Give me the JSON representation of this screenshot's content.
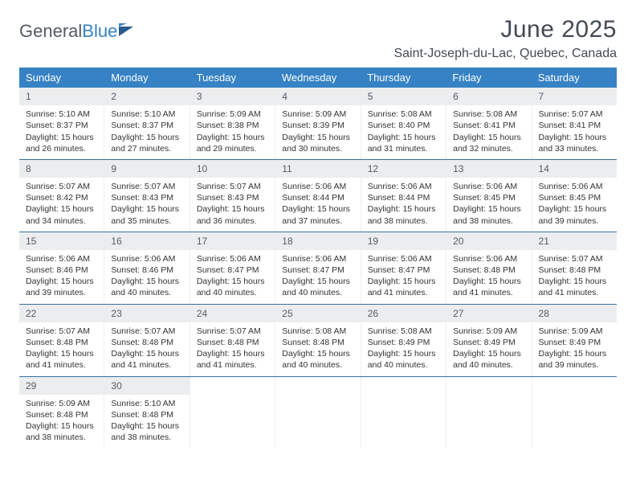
{
  "brand": {
    "part1": "General",
    "part2": "Blue"
  },
  "title": "June 2025",
  "location": "Saint-Joseph-du-Lac, Quebec, Canada",
  "dayNames": [
    "Sunday",
    "Monday",
    "Tuesday",
    "Wednesday",
    "Thursday",
    "Friday",
    "Saturday"
  ],
  "colors": {
    "headerBar": "#3682c4",
    "weekDivider": "#3a6fa3",
    "dayNumBg": "#ecedef",
    "text": "#333333",
    "titleText": "#444a52"
  },
  "weeks": [
    [
      {
        "n": "1",
        "sr": "Sunrise: 5:10 AM",
        "ss": "Sunset: 8:37 PM",
        "d1": "Daylight: 15 hours",
        "d2": "and 26 minutes."
      },
      {
        "n": "2",
        "sr": "Sunrise: 5:10 AM",
        "ss": "Sunset: 8:37 PM",
        "d1": "Daylight: 15 hours",
        "d2": "and 27 minutes."
      },
      {
        "n": "3",
        "sr": "Sunrise: 5:09 AM",
        "ss": "Sunset: 8:38 PM",
        "d1": "Daylight: 15 hours",
        "d2": "and 29 minutes."
      },
      {
        "n": "4",
        "sr": "Sunrise: 5:09 AM",
        "ss": "Sunset: 8:39 PM",
        "d1": "Daylight: 15 hours",
        "d2": "and 30 minutes."
      },
      {
        "n": "5",
        "sr": "Sunrise: 5:08 AM",
        "ss": "Sunset: 8:40 PM",
        "d1": "Daylight: 15 hours",
        "d2": "and 31 minutes."
      },
      {
        "n": "6",
        "sr": "Sunrise: 5:08 AM",
        "ss": "Sunset: 8:41 PM",
        "d1": "Daylight: 15 hours",
        "d2": "and 32 minutes."
      },
      {
        "n": "7",
        "sr": "Sunrise: 5:07 AM",
        "ss": "Sunset: 8:41 PM",
        "d1": "Daylight: 15 hours",
        "d2": "and 33 minutes."
      }
    ],
    [
      {
        "n": "8",
        "sr": "Sunrise: 5:07 AM",
        "ss": "Sunset: 8:42 PM",
        "d1": "Daylight: 15 hours",
        "d2": "and 34 minutes."
      },
      {
        "n": "9",
        "sr": "Sunrise: 5:07 AM",
        "ss": "Sunset: 8:43 PM",
        "d1": "Daylight: 15 hours",
        "d2": "and 35 minutes."
      },
      {
        "n": "10",
        "sr": "Sunrise: 5:07 AM",
        "ss": "Sunset: 8:43 PM",
        "d1": "Daylight: 15 hours",
        "d2": "and 36 minutes."
      },
      {
        "n": "11",
        "sr": "Sunrise: 5:06 AM",
        "ss": "Sunset: 8:44 PM",
        "d1": "Daylight: 15 hours",
        "d2": "and 37 minutes."
      },
      {
        "n": "12",
        "sr": "Sunrise: 5:06 AM",
        "ss": "Sunset: 8:44 PM",
        "d1": "Daylight: 15 hours",
        "d2": "and 38 minutes."
      },
      {
        "n": "13",
        "sr": "Sunrise: 5:06 AM",
        "ss": "Sunset: 8:45 PM",
        "d1": "Daylight: 15 hours",
        "d2": "and 38 minutes."
      },
      {
        "n": "14",
        "sr": "Sunrise: 5:06 AM",
        "ss": "Sunset: 8:45 PM",
        "d1": "Daylight: 15 hours",
        "d2": "and 39 minutes."
      }
    ],
    [
      {
        "n": "15",
        "sr": "Sunrise: 5:06 AM",
        "ss": "Sunset: 8:46 PM",
        "d1": "Daylight: 15 hours",
        "d2": "and 39 minutes."
      },
      {
        "n": "16",
        "sr": "Sunrise: 5:06 AM",
        "ss": "Sunset: 8:46 PM",
        "d1": "Daylight: 15 hours",
        "d2": "and 40 minutes."
      },
      {
        "n": "17",
        "sr": "Sunrise: 5:06 AM",
        "ss": "Sunset: 8:47 PM",
        "d1": "Daylight: 15 hours",
        "d2": "and 40 minutes."
      },
      {
        "n": "18",
        "sr": "Sunrise: 5:06 AM",
        "ss": "Sunset: 8:47 PM",
        "d1": "Daylight: 15 hours",
        "d2": "and 40 minutes."
      },
      {
        "n": "19",
        "sr": "Sunrise: 5:06 AM",
        "ss": "Sunset: 8:47 PM",
        "d1": "Daylight: 15 hours",
        "d2": "and 41 minutes."
      },
      {
        "n": "20",
        "sr": "Sunrise: 5:06 AM",
        "ss": "Sunset: 8:48 PM",
        "d1": "Daylight: 15 hours",
        "d2": "and 41 minutes."
      },
      {
        "n": "21",
        "sr": "Sunrise: 5:07 AM",
        "ss": "Sunset: 8:48 PM",
        "d1": "Daylight: 15 hours",
        "d2": "and 41 minutes."
      }
    ],
    [
      {
        "n": "22",
        "sr": "Sunrise: 5:07 AM",
        "ss": "Sunset: 8:48 PM",
        "d1": "Daylight: 15 hours",
        "d2": "and 41 minutes."
      },
      {
        "n": "23",
        "sr": "Sunrise: 5:07 AM",
        "ss": "Sunset: 8:48 PM",
        "d1": "Daylight: 15 hours",
        "d2": "and 41 minutes."
      },
      {
        "n": "24",
        "sr": "Sunrise: 5:07 AM",
        "ss": "Sunset: 8:48 PM",
        "d1": "Daylight: 15 hours",
        "d2": "and 41 minutes."
      },
      {
        "n": "25",
        "sr": "Sunrise: 5:08 AM",
        "ss": "Sunset: 8:48 PM",
        "d1": "Daylight: 15 hours",
        "d2": "and 40 minutes."
      },
      {
        "n": "26",
        "sr": "Sunrise: 5:08 AM",
        "ss": "Sunset: 8:49 PM",
        "d1": "Daylight: 15 hours",
        "d2": "and 40 minutes."
      },
      {
        "n": "27",
        "sr": "Sunrise: 5:09 AM",
        "ss": "Sunset: 8:49 PM",
        "d1": "Daylight: 15 hours",
        "d2": "and 40 minutes."
      },
      {
        "n": "28",
        "sr": "Sunrise: 5:09 AM",
        "ss": "Sunset: 8:49 PM",
        "d1": "Daylight: 15 hours",
        "d2": "and 39 minutes."
      }
    ],
    [
      {
        "n": "29",
        "sr": "Sunrise: 5:09 AM",
        "ss": "Sunset: 8:48 PM",
        "d1": "Daylight: 15 hours",
        "d2": "and 38 minutes."
      },
      {
        "n": "30",
        "sr": "Sunrise: 5:10 AM",
        "ss": "Sunset: 8:48 PM",
        "d1": "Daylight: 15 hours",
        "d2": "and 38 minutes."
      },
      {
        "empty": true
      },
      {
        "empty": true
      },
      {
        "empty": true
      },
      {
        "empty": true
      },
      {
        "empty": true
      }
    ]
  ]
}
